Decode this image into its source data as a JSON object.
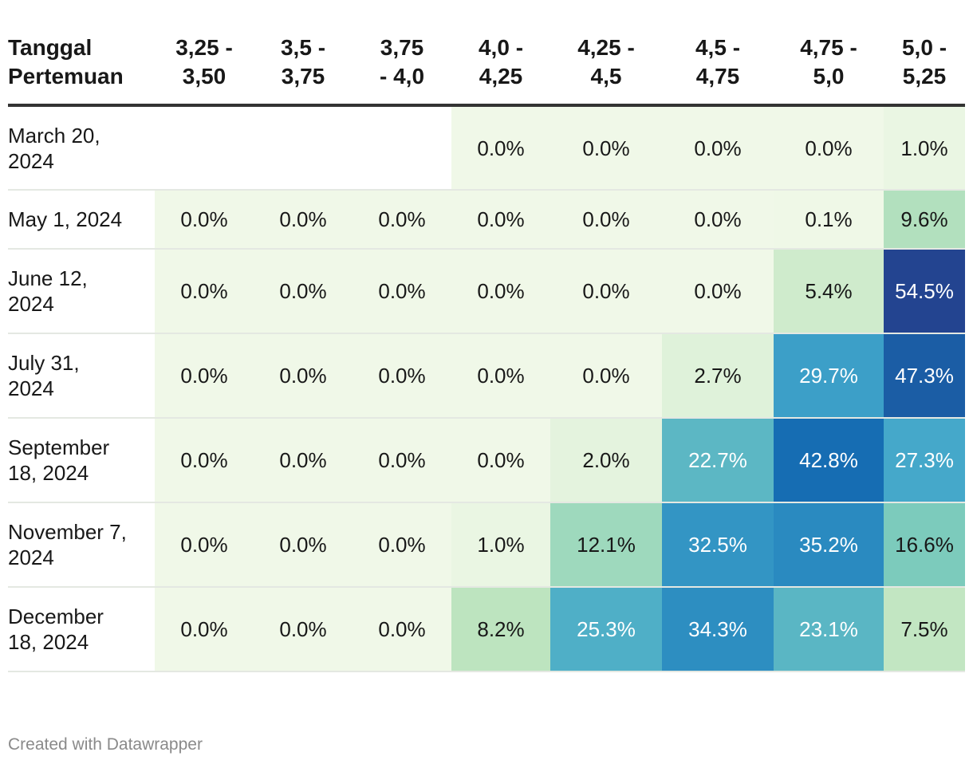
{
  "chart_data": {
    "type": "heatmap",
    "row_header": "Tanggal Pertemuan",
    "columns": [
      "3,25 - 3,50",
      "3,5 - 3,75",
      "3,75 - 4,0",
      "4,0 - 4,25",
      "4,25 - 4,5",
      "4,5 - 4,75",
      "4,75 - 5,0",
      "5,0 - 5,25"
    ],
    "rows": [
      {
        "date": "March 20, 2024",
        "values": [
          null,
          null,
          null,
          0.0,
          0.0,
          0.0,
          0.0,
          1.0
        ]
      },
      {
        "date": "May 1, 2024",
        "values": [
          0.0,
          0.0,
          0.0,
          0.0,
          0.0,
          0.0,
          0.1,
          9.6
        ]
      },
      {
        "date": "June 12, 2024",
        "values": [
          0.0,
          0.0,
          0.0,
          0.0,
          0.0,
          0.0,
          5.4,
          54.5
        ]
      },
      {
        "date": "July 31, 2024",
        "values": [
          0.0,
          0.0,
          0.0,
          0.0,
          0.0,
          2.7,
          29.7,
          47.3
        ]
      },
      {
        "date": "September 18, 2024",
        "values": [
          0.0,
          0.0,
          0.0,
          0.0,
          2.0,
          22.7,
          42.8,
          27.3
        ]
      },
      {
        "date": "November 7, 2024",
        "values": [
          0.0,
          0.0,
          0.0,
          1.0,
          12.1,
          32.5,
          35.2,
          16.6
        ]
      },
      {
        "date": "December 18, 2024",
        "values": [
          0.0,
          0.0,
          0.0,
          8.2,
          25.3,
          34.3,
          23.1,
          7.5
        ]
      }
    ],
    "value_suffix": "%",
    "color_scale": [
      "#f0f8e8",
      "#bfe5bf",
      "#7fcdbb",
      "#41a6cb",
      "#1570b5",
      "#253f8b"
    ]
  },
  "footer": "Created with Datawrapper"
}
